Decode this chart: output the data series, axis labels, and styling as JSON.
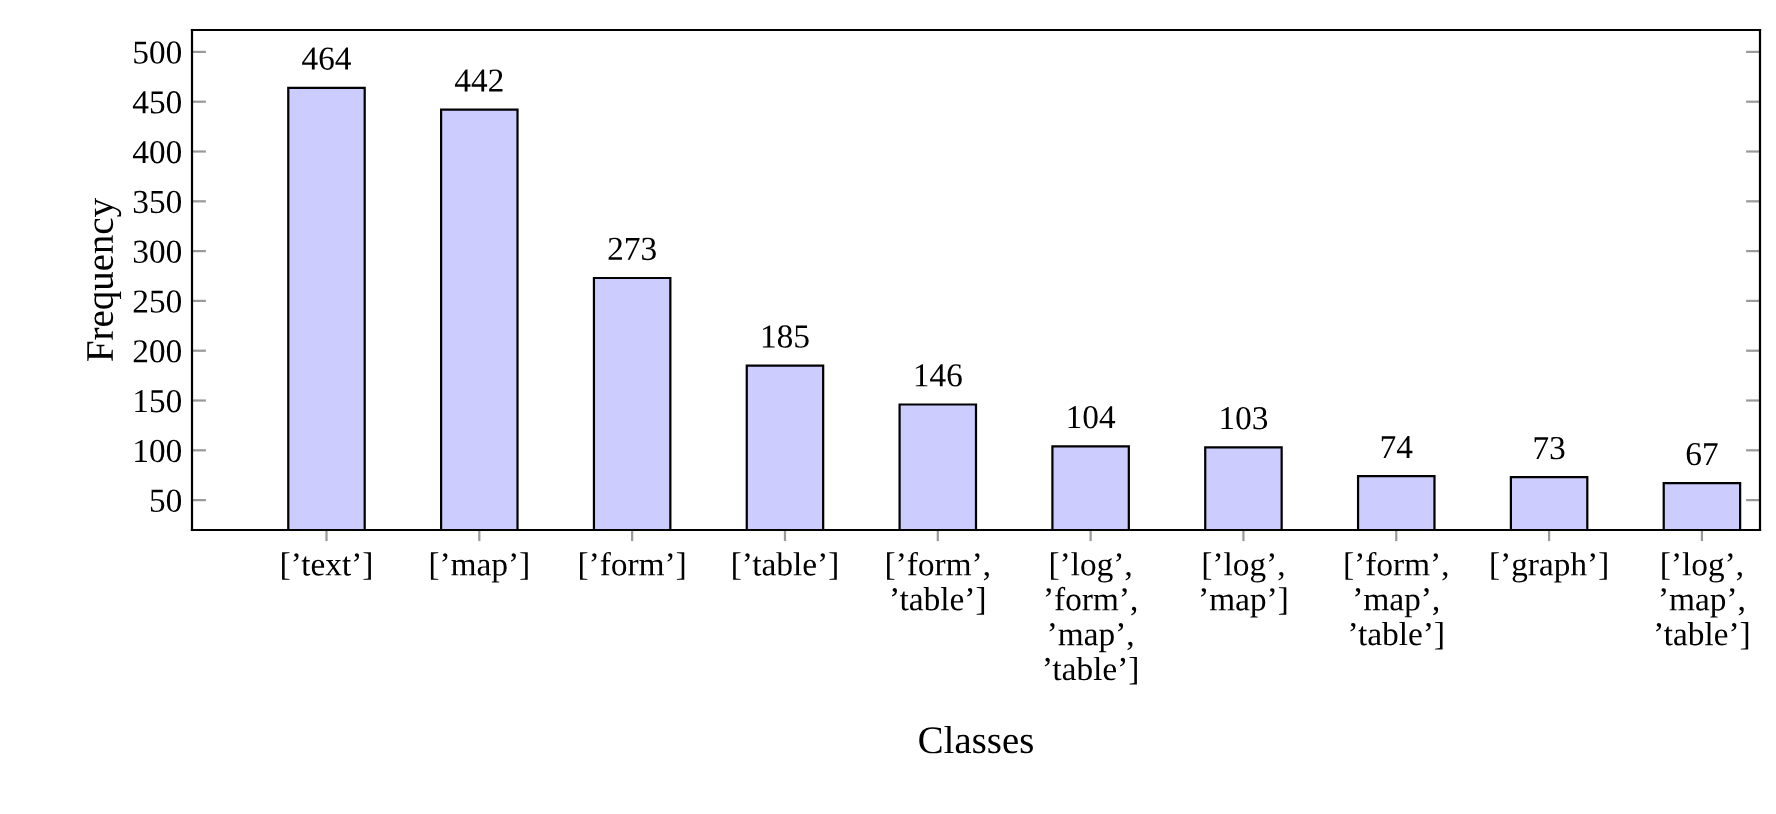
{
  "chart_data": {
    "type": "bar",
    "xlabel": "Classes",
    "ylabel": "Frequency",
    "categories": [
      "[’text’]",
      "[’map’]",
      "[’form’]",
      "[’table’]",
      "[’form’,\n’table’]",
      "[’log’,\n’form’,\n’map’,\n’table’]",
      "[’log’,\n’map’]",
      "[’form’,\n’map’,\n’table’]",
      "[’graph’]",
      "[’log’,\n’map’,\n’table’]"
    ],
    "values": [
      464,
      442,
      273,
      185,
      146,
      104,
      103,
      74,
      73,
      67
    ],
    "color": "#ccccff",
    "ylim": [
      20,
      522
    ],
    "yticks": [
      50,
      100,
      150,
      200,
      250,
      300,
      350,
      400,
      450,
      500
    ],
    "data_labels": true,
    "grid": false,
    "legend": false
  }
}
